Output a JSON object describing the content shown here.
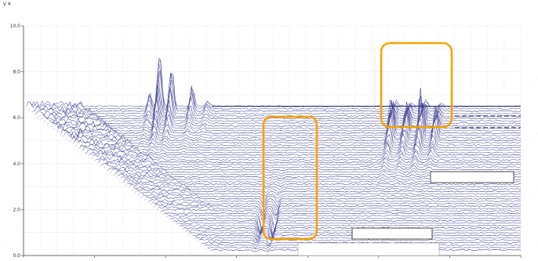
{
  "chart_data": {
    "type": "line",
    "subtype": "3d-waterfall",
    "ylabel": "V ¥",
    "y_ticks": [
      "10.0",
      "8.0",
      "6.0",
      "4.0",
      "2.0",
      "0.0"
    ],
    "ylim": [
      0,
      10
    ],
    "grid": true,
    "trace_count": 60,
    "plateau_level": 6.5,
    "peaks": [
      {
        "x_frac": 0.275,
        "value": 9.6
      },
      {
        "x_frac": 0.299,
        "value": 8.6
      },
      {
        "x_frac": 0.255,
        "value": 7.3
      },
      {
        "x_frac": 0.34,
        "value": 7.6
      },
      {
        "x_frac": 0.371,
        "value": 6.9
      },
      {
        "x_frac": 0.75,
        "value": 8.4
      },
      {
        "x_frac": 0.78,
        "value": 8.1
      },
      {
        "x_frac": 0.81,
        "value": 8.7
      },
      {
        "x_frac": 0.84,
        "value": 7.8
      },
      {
        "x_frac": 0.52,
        "value": 5.5
      },
      {
        "x_frac": 0.546,
        "value": 5.4
      }
    ],
    "annotations": [
      {
        "kind": "highlight-box",
        "color": "#f5a300",
        "around": "peak cluster near x 0.75-0.88, values 6.1-8.7"
      },
      {
        "kind": "highlight-box",
        "color": "#f5a300",
        "around": "two spikes near x 0.52-0.55, values 0.7-5.6"
      },
      {
        "kind": "redaction-box",
        "color": "#ffffff"
      },
      {
        "kind": "redaction-box",
        "color": "#ffffff"
      }
    ]
  }
}
